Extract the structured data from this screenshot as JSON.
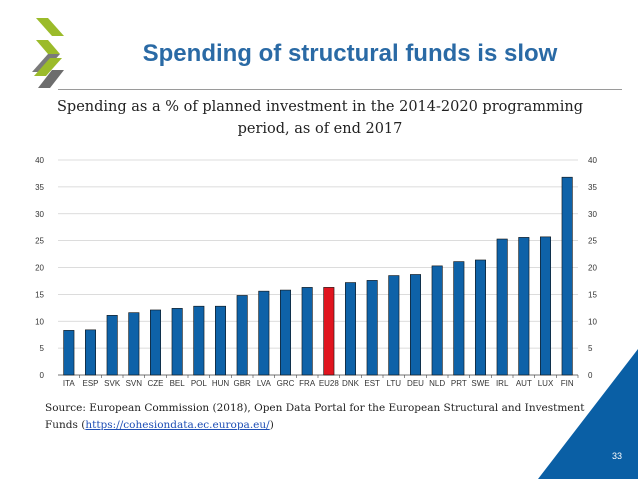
{
  "slide": {
    "title": "Spending of structural funds is slow",
    "page_number": "33"
  },
  "colors": {
    "title": "#2a6aa5",
    "bar": "#0e62a8",
    "highlight_bar": "#e0151f",
    "logo_green": "#9bbb2a",
    "corner": "#0a5fa5"
  },
  "chart_data": {
    "type": "bar",
    "title": "Spending as a % of planned investment in the 2014-2020 programming period, as of end 2017",
    "categories": [
      "ITA",
      "ESP",
      "SVK",
      "SVN",
      "CZE",
      "BEL",
      "POL",
      "HUN",
      "GBR",
      "LVA",
      "GRC",
      "FRA",
      "EU28",
      "DNK",
      "EST",
      "LTU",
      "DEU",
      "NLD",
      "PRT",
      "SWE",
      "IRL",
      "AUT",
      "LUX",
      "FIN"
    ],
    "values": [
      8.3,
      8.4,
      11.1,
      11.6,
      12.1,
      12.4,
      12.8,
      12.8,
      14.8,
      15.6,
      15.8,
      16.3,
      16.3,
      17.2,
      17.6,
      18.5,
      18.7,
      20.3,
      21.1,
      21.4,
      25.3,
      25.6,
      25.7,
      36.8
    ],
    "highlight": "EU28",
    "ylim": [
      0,
      40
    ],
    "yticks": [
      0,
      5,
      10,
      15,
      20,
      25,
      30,
      35,
      40
    ],
    "xlabel": "",
    "ylabel": "",
    "grid": true,
    "dual_y_axis": true
  },
  "source": {
    "text": "Source:  European Commission (2018), Open Data Portal for the European Structural and Investment Funds (",
    "link": "https://cohesiondata.ec.europa.eu/",
    "suffix": ")"
  }
}
